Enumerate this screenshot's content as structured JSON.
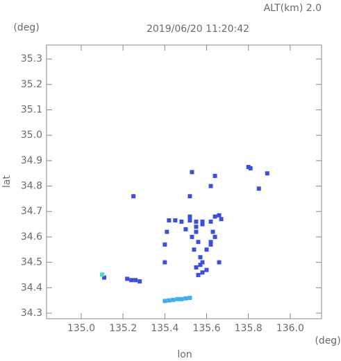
{
  "chart_data": {
    "type": "scatter",
    "title": "2019/06/20 11:20:42",
    "subtitle": "ALT(km) 2.0",
    "y_unit": "(deg)",
    "x_unit": "(deg)",
    "x_label": "lon",
    "y_label": "lat",
    "xlim": [
      134.834,
      136.15
    ],
    "ylim": [
      34.278,
      35.355
    ],
    "xticks": [
      {
        "value": 135.0,
        "label": "135.0"
      },
      135.2,
      135.4,
      135.6,
      135.8,
      {
        "value": 136.0,
        "label": "136.0"
      }
    ],
    "yticks": [
      34.3,
      34.4,
      34.5,
      34.6,
      34.7,
      34.8,
      34.9,
      {
        "value": 35.0,
        "label": "35.0"
      },
      35.1,
      35.2,
      35.3
    ],
    "series": [
      {
        "color": "#3a4fe0",
        "x": [
          135.11,
          135.22,
          135.24,
          135.26,
          135.28,
          135.25,
          135.8,
          135.81,
          135.89,
          135.85,
          135.64,
          135.62,
          135.53,
          135.52,
          135.4,
          135.4,
          135.41,
          135.42,
          135.45,
          135.48,
          135.52,
          135.55,
          135.58,
          135.62,
          135.64,
          135.66,
          135.67,
          135.55,
          135.56,
          135.54,
          135.57,
          135.58,
          135.55,
          135.6,
          135.62,
          135.64,
          135.53,
          135.56,
          135.58,
          135.55,
          135.57,
          135.6,
          135.63,
          135.66,
          135.62,
          135.5,
          135.52,
          135.58
        ],
        "y": [
          34.44,
          34.435,
          34.43,
          34.43,
          34.425,
          34.76,
          34.875,
          34.87,
          34.85,
          34.79,
          34.84,
          34.8,
          34.855,
          34.76,
          34.57,
          34.5,
          34.62,
          34.665,
          34.665,
          34.66,
          34.665,
          34.66,
          34.66,
          34.66,
          34.68,
          34.685,
          34.67,
          34.62,
          34.58,
          34.55,
          34.52,
          34.5,
          34.48,
          34.55,
          34.58,
          34.6,
          34.6,
          34.45,
          34.46,
          34.64,
          34.49,
          34.47,
          34.62,
          34.5,
          34.57,
          34.63,
          34.68,
          34.65
        ]
      },
      {
        "color": "#3ab0ea",
        "x": [
          135.4,
          135.42,
          135.44,
          135.46,
          135.48,
          135.5,
          135.52
        ],
        "y": [
          34.348,
          34.35,
          34.352,
          34.355,
          34.355,
          34.358,
          34.36
        ]
      },
      {
        "color": "#40e0c0",
        "x": [
          135.1
        ],
        "y": [
          34.452
        ]
      }
    ]
  }
}
